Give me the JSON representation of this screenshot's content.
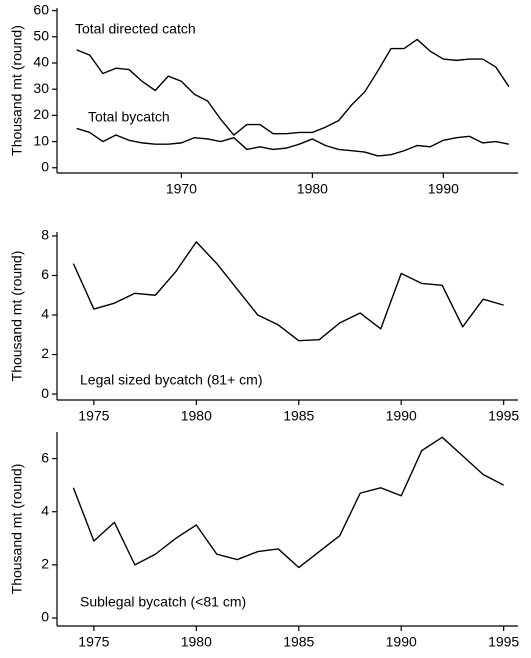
{
  "chart_data": [
    {
      "type": "line",
      "y_label": "Thousand mt (round)",
      "x": [
        1962,
        1963,
        1964,
        1965,
        1966,
        1967,
        1968,
        1969,
        1970,
        1971,
        1972,
        1973,
        1974,
        1975,
        1976,
        1977,
        1978,
        1979,
        1980,
        1981,
        1982,
        1983,
        1984,
        1985,
        1986,
        1987,
        1988,
        1989,
        1990,
        1991,
        1992,
        1993,
        1994,
        1995
      ],
      "series": [
        {
          "name": "Total directed catch",
          "color": "#000000",
          "values": [
            45,
            43,
            36,
            38,
            37.5,
            33,
            29.5,
            35,
            33,
            28,
            25.5,
            18.5,
            12.5,
            16.5,
            16.5,
            13,
            13,
            13.5,
            13.5,
            15.5,
            18,
            24,
            29,
            37,
            45.5,
            45.5,
            49,
            44.5,
            41.5,
            41,
            41.5,
            41.5,
            38.5,
            31
          ]
        },
        {
          "name": "Total bycatch",
          "color": "#000000",
          "values": [
            15,
            13.5,
            10,
            12.5,
            10.5,
            9.5,
            9,
            9,
            9.5,
            11.5,
            11,
            10,
            11.5,
            7,
            8,
            7,
            7.5,
            9,
            11,
            8.5,
            7,
            6.5,
            6,
            4.5,
            5,
            6.5,
            8.5,
            8,
            10.5,
            11.5,
            12,
            9.5,
            10,
            9
          ]
        }
      ],
      "xlim": [
        1960.5,
        1995.7
      ],
      "xticks": [
        1970,
        1980,
        1990
      ],
      "ylim": [
        -2,
        61
      ],
      "yticks": [
        0,
        10,
        20,
        30,
        40,
        50,
        60
      ]
    },
    {
      "type": "line",
      "y_label": "Thousand mt (round)",
      "x": [
        1974,
        1975,
        1976,
        1977,
        1978,
        1979,
        1980,
        1981,
        1982,
        1983,
        1984,
        1985,
        1986,
        1987,
        1988,
        1989,
        1990,
        1991,
        1992,
        1993,
        1994,
        1995
      ],
      "series": [
        {
          "name": "Legal sized bycatch (81+ cm)",
          "color": "#000000",
          "values": [
            6.6,
            4.3,
            4.6,
            5.1,
            5.0,
            6.2,
            7.7,
            6.6,
            5.3,
            4.0,
            3.5,
            2.7,
            2.75,
            3.6,
            4.1,
            3.3,
            6.1,
            5.6,
            5.5,
            3.4,
            4.8,
            4.5
          ]
        }
      ],
      "xlim": [
        1973.2,
        1995.7
      ],
      "xticks": [
        1975,
        1980,
        1985,
        1990,
        1995
      ],
      "ylim": [
        -0.3,
        8.2
      ],
      "yticks": [
        0,
        2,
        4,
        6,
        8
      ]
    },
    {
      "type": "line",
      "y_label": "Thousand mt (round)",
      "x": [
        1974,
        1975,
        1976,
        1977,
        1978,
        1979,
        1980,
        1981,
        1982,
        1983,
        1984,
        1985,
        1986,
        1987,
        1988,
        1989,
        1990,
        1991,
        1992,
        1993,
        1994,
        1995
      ],
      "series": [
        {
          "name": "Sublegal bycatch (<81 cm)",
          "color": "#000000",
          "values": [
            4.9,
            2.9,
            3.6,
            2.0,
            2.4,
            3.0,
            3.5,
            2.4,
            2.2,
            2.5,
            2.6,
            1.9,
            2.5,
            3.1,
            4.7,
            4.9,
            4.6,
            6.3,
            6.8,
            6.1,
            5.4,
            5.0
          ]
        }
      ],
      "xlim": [
        1973.2,
        1995.7
      ],
      "xticks": [
        1975,
        1980,
        1985,
        1990,
        1995
      ],
      "ylim": [
        -0.3,
        7.0
      ],
      "yticks": [
        0,
        2,
        4,
        6
      ]
    }
  ]
}
